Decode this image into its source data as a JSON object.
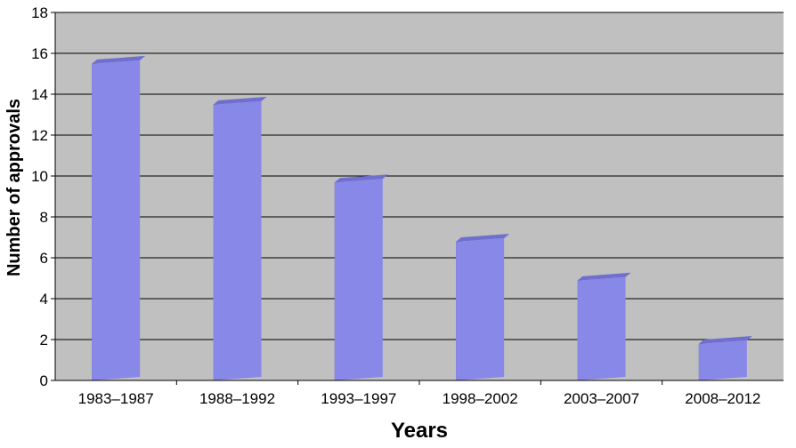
{
  "chart_data": {
    "type": "bar",
    "categories": [
      "1983–1987",
      "1988–1992",
      "1993–1997",
      "1998–2002",
      "2003–2007",
      "2008–2012"
    ],
    "values": [
      15.7,
      13.7,
      9.9,
      7.0,
      5.1,
      2.0
    ],
    "ylim": [
      0,
      18
    ],
    "yticks": [
      0,
      2,
      4,
      6,
      8,
      10,
      12,
      14,
      16,
      18
    ],
    "xlabel": "Years",
    "ylabel": "Number of approvals",
    "grid": true,
    "colors": {
      "plot_background": "#c0c0c0",
      "gridline": "#000000",
      "bar_front": "#8888e8",
      "bar_side": "#5a5aa8",
      "bar_top": "#6f6fcf"
    }
  }
}
